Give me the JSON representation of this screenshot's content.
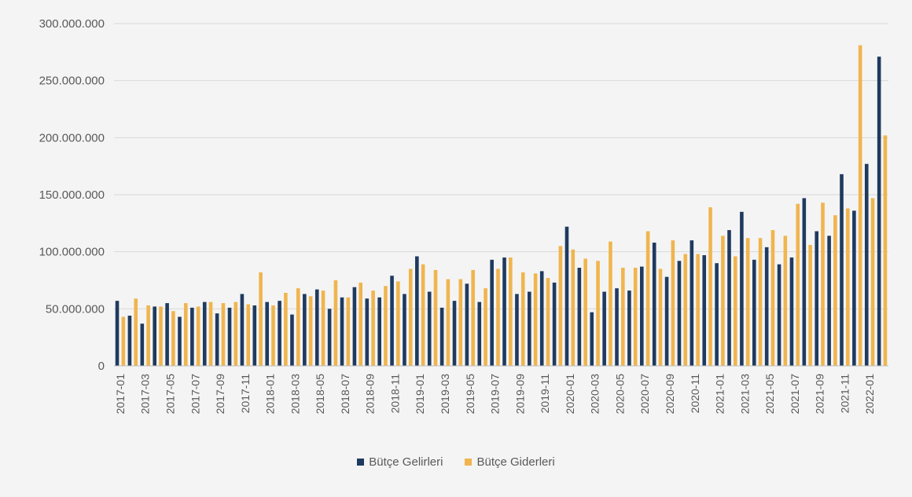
{
  "chart_data": {
    "type": "bar",
    "categories": [
      "2017-01",
      "2017-02",
      "2017-03",
      "2017-04",
      "2017-05",
      "2017-06",
      "2017-07",
      "2017-08",
      "2017-09",
      "2017-10",
      "2017-11",
      "2017-12",
      "2018-01",
      "2018-02",
      "2018-03",
      "2018-04",
      "2018-05",
      "2018-06",
      "2018-07",
      "2018-08",
      "2018-09",
      "2018-10",
      "2018-11",
      "2018-12",
      "2019-01",
      "2019-02",
      "2019-03",
      "2019-04",
      "2019-05",
      "2019-06",
      "2019-07",
      "2019-08",
      "2019-09",
      "2019-10",
      "2019-11",
      "2019-12",
      "2020-01",
      "2020-02",
      "2020-03",
      "2020-04",
      "2020-05",
      "2020-06",
      "2020-07",
      "2020-08",
      "2020-09",
      "2020-10",
      "2020-11",
      "2020-12",
      "2021-01",
      "2021-02",
      "2021-03",
      "2021-04",
      "2021-05",
      "2021-06",
      "2021-07",
      "2021-08",
      "2021-09",
      "2021-10",
      "2021-11",
      "2021-12",
      "2022-01",
      "2022-02"
    ],
    "tick_labels": [
      "2017-01",
      "2017-03",
      "2017-05",
      "2017-07",
      "2017-09",
      "2017-11",
      "2018-01",
      "2018-03",
      "2018-05",
      "2018-07",
      "2018-09",
      "2018-11",
      "2019-01",
      "2019-03",
      "2019-05",
      "2019-07",
      "2019-09",
      "2019-11",
      "2020-01",
      "2020-03",
      "2020-05",
      "2020-07",
      "2020-09",
      "2020-11",
      "2021-01",
      "2021-03",
      "2021-05",
      "2021-07",
      "2021-09",
      "2021-11",
      "2022-01"
    ],
    "series": [
      {
        "name": "Bütçe Gelirleri",
        "color": "#1f3a5f",
        "values": [
          57000000,
          44000000,
          37000000,
          52000000,
          55000000,
          43000000,
          51000000,
          56000000,
          46000000,
          51000000,
          63000000,
          53000000,
          56000000,
          57000000,
          45000000,
          63000000,
          67000000,
          50000000,
          60000000,
          69000000,
          59000000,
          60000000,
          79000000,
          63000000,
          96000000,
          65000000,
          51000000,
          57000000,
          72000000,
          56000000,
          93000000,
          95000000,
          63000000,
          65000000,
          83000000,
          73000000,
          122000000,
          86000000,
          47000000,
          65000000,
          68000000,
          66000000,
          87000000,
          108000000,
          78000000,
          92000000,
          110000000,
          97000000,
          90000000,
          119000000,
          135000000,
          93000000,
          104000000,
          89000000,
          95000000,
          147000000,
          118000000,
          114000000,
          168000000,
          136000000,
          177000000,
          271000000
        ]
      },
      {
        "name": "Bütçe Giderleri",
        "color": "#f0b54e",
        "values": [
          43000000,
          59000000,
          53000000,
          52000000,
          48000000,
          55000000,
          52000000,
          56000000,
          55000000,
          56000000,
          54000000,
          82000000,
          53000000,
          64000000,
          68000000,
          61000000,
          66000000,
          75000000,
          60000000,
          73000000,
          66000000,
          70000000,
          74000000,
          85000000,
          89000000,
          84000000,
          76000000,
          76000000,
          84000000,
          68000000,
          85000000,
          95000000,
          82000000,
          81000000,
          77000000,
          105000000,
          102000000,
          94000000,
          92000000,
          109000000,
          86000000,
          86000000,
          118000000,
          85000000,
          110000000,
          98000000,
          98000000,
          139000000,
          114000000,
          96000000,
          112000000,
          112000000,
          119000000,
          114000000,
          142000000,
          106000000,
          143000000,
          132000000,
          138000000,
          281000000,
          147000000,
          202000000
        ]
      }
    ],
    "yticks": [
      "300.000.000",
      "250.000.000",
      "200.000.000",
      "150.000.000",
      "100.000.000",
      "50.000.000",
      "0"
    ],
    "ytick_values": [
      300000000,
      250000000,
      200000000,
      150000000,
      100000000,
      50000000,
      0
    ],
    "ylim": [
      0,
      300000000
    ],
    "title": "",
    "xlabel": "",
    "ylabel": "",
    "legend_position": "bottom",
    "grid": true
  }
}
